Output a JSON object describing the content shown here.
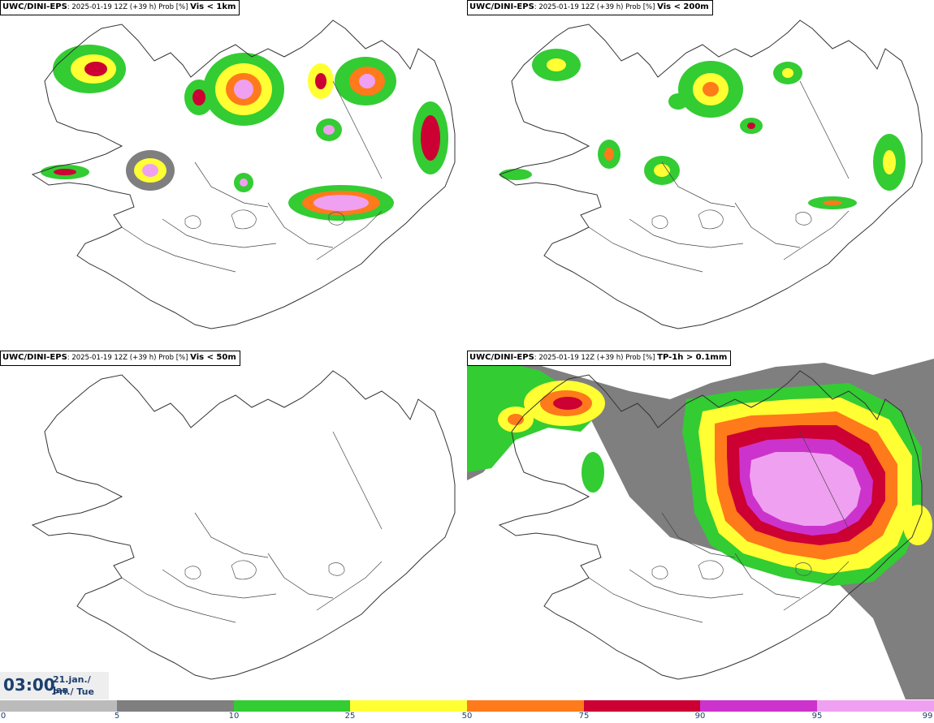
{
  "panels": [
    {
      "model": "UWC/DINI-EPS",
      "run": ": 2025-01-19 12Z (+39 h) Prob [%] ",
      "variable": "Vis < 1km"
    },
    {
      "model": "UWC/DINI-EPS",
      "run": ": 2025-01-19 12Z (+39 h) Prob [%] ",
      "variable": "Vis < 200m"
    },
    {
      "model": "UWC/DINI-EPS",
      "run": ": 2025-01-19 12Z (+39 h) Prob [%] ",
      "variable": "Vis < 50m"
    },
    {
      "model": "UWC/DINI-EPS",
      "run": ": 2025-01-19 12Z (+39 h) Prob [%] ",
      "variable": "TP-1h > 0.1mm"
    }
  ],
  "time": {
    "hour": "03:00",
    "date_line1": "21.jan./ Jan",
    "date_line2": "Þri./ Tue"
  },
  "legend": {
    "ticks": [
      "0",
      "5",
      "10",
      "25",
      "50",
      "75",
      "90",
      "95",
      "99"
    ],
    "colors": [
      "#ffffff",
      "#bbbbbb",
      "#7f7f7f",
      "#33cc33",
      "#ffff33",
      "#ff7a1a",
      "#cc0033",
      "#cc33cc",
      "#f0a0f0"
    ]
  }
}
